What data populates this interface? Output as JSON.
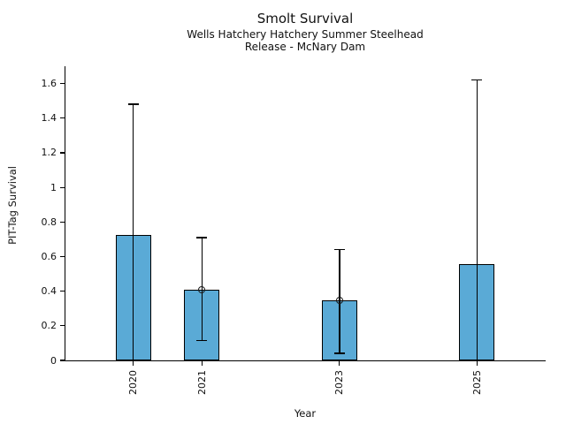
{
  "chart_data": {
    "type": "bar",
    "title": "Smolt Survival",
    "subtitle1": "Wells Hatchery Hatchery Summer Steelhead",
    "subtitle2": "Release - McNary Dam",
    "xlabel": "Year",
    "ylabel": "PIT-Tag Survival",
    "categories": [
      "2020",
      "2021",
      "2023",
      "2025"
    ],
    "years": [
      2020,
      2021,
      2023,
      2025
    ],
    "values": [
      0.725,
      0.41,
      0.345,
      0.555
    ],
    "error_upper": [
      1.48,
      0.71,
      0.64,
      1.62
    ],
    "error_lower": [
      0,
      0.115,
      0.04,
      0
    ],
    "lower_cap_visible": [
      false,
      true,
      true,
      false
    ],
    "circle_marker": [
      false,
      true,
      true,
      false
    ],
    "yticks": [
      0,
      0.2,
      0.4,
      0.6,
      0.8,
      1,
      1.2,
      1.4,
      1.6
    ],
    "ytick_labels": [
      "0",
      "0.2",
      "0.4",
      "0.6",
      "0.8",
      "1",
      "1.2",
      "1.4",
      "1.6"
    ],
    "ylim": [
      0,
      1.7
    ],
    "x_range": [
      2019,
      2026
    ],
    "grid": "off",
    "legend": "none",
    "bar_color": "#5aaad6",
    "bar_edge_color": "#000000",
    "errorbar_color": "#000000",
    "text_color": "#111111",
    "background_color": "#ffffff"
  }
}
